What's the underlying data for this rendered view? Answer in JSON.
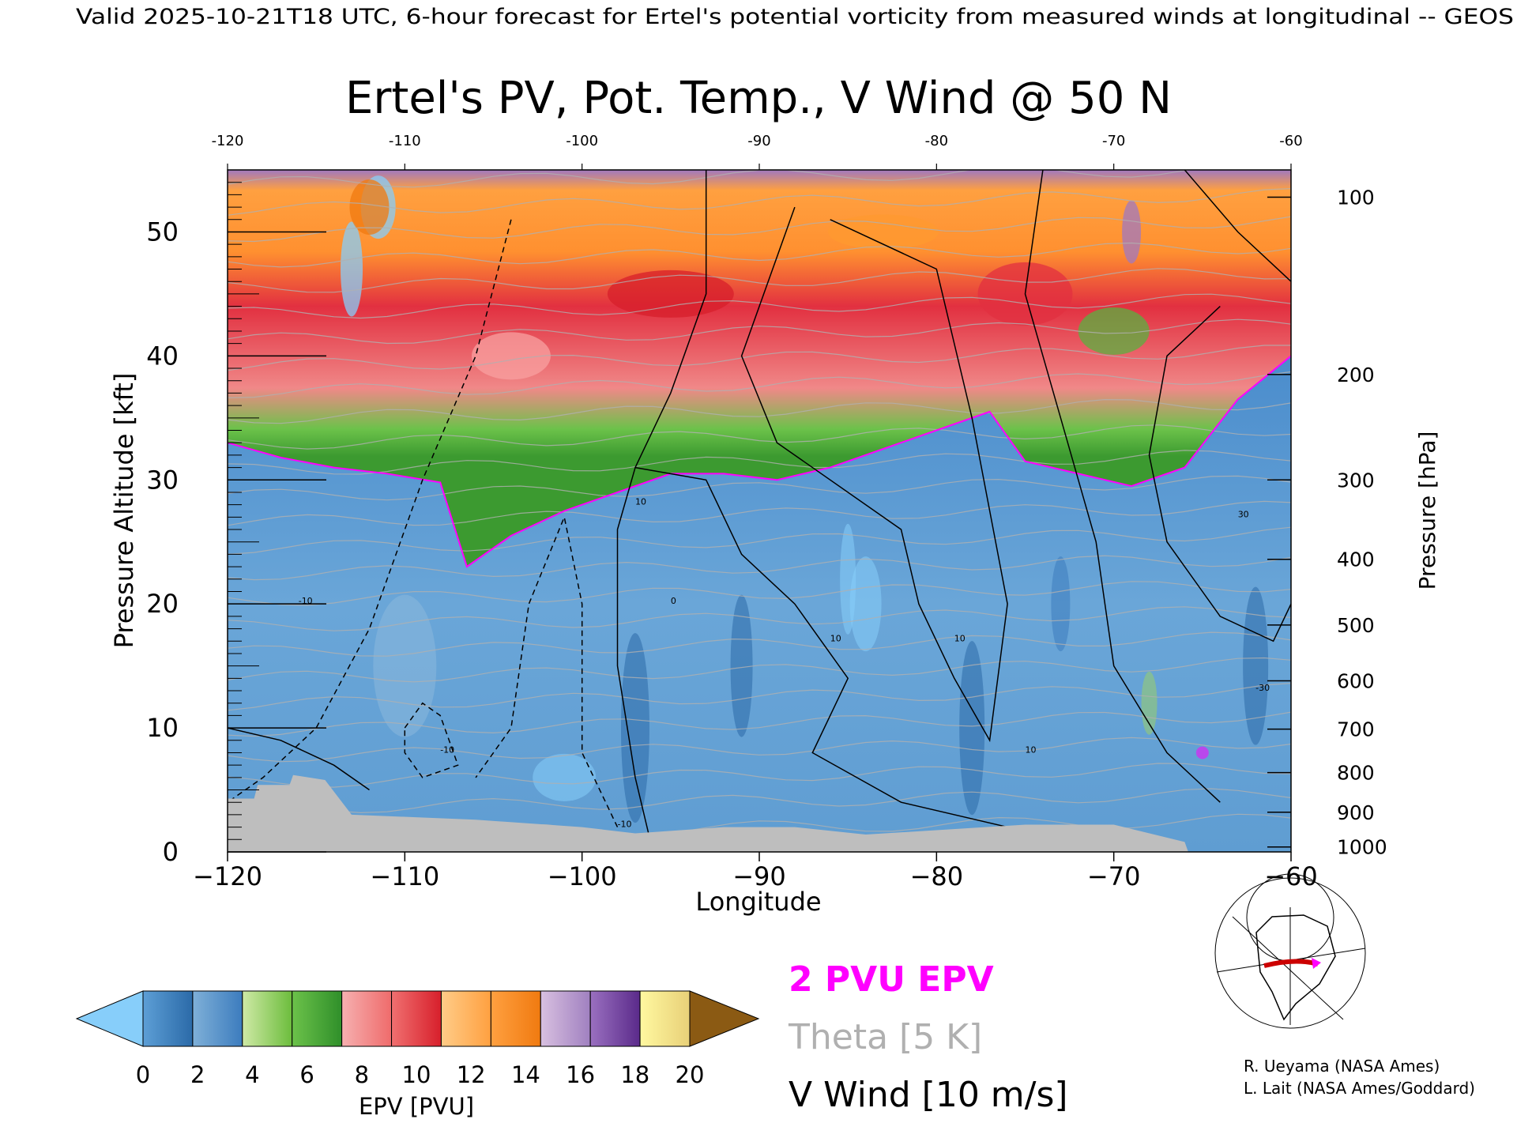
{
  "header": {
    "valid_line": "Valid 2025-10-21T18 UTC, 6-hour forecast for Ertel's potential vorticity from measured winds at longitudinal -- GEOS"
  },
  "chart_data": {
    "type": "heatmap",
    "title": "Ertel's PV, Pot. Temp., V Wind @ 50 N",
    "xlabel": "Longitude",
    "ylabel_left": "Pressure Altitude [kft]",
    "ylabel_right": "Pressure [hPa]",
    "xlim": [
      -120,
      -60
    ],
    "ylim_kft": [
      0,
      55
    ],
    "x_ticks": [
      "-120",
      "-110",
      "-100",
      "-90",
      "-80",
      "-70",
      "-60"
    ],
    "x_ticks_top": [
      "-120",
      "-110",
      "-100",
      "-90",
      "-80",
      "-70",
      "-60"
    ],
    "y_ticks_left": [
      {
        "value": 0,
        "label": "0"
      },
      {
        "value": 10,
        "label": "10"
      },
      {
        "value": 20,
        "label": "20"
      },
      {
        "value": 30,
        "label": "30"
      },
      {
        "value": 40,
        "label": "40"
      },
      {
        "value": 50,
        "label": "50"
      }
    ],
    "y_ticks_right": [
      {
        "kft": 52.8,
        "label": "100"
      },
      {
        "kft": 38.5,
        "label": "200"
      },
      {
        "kft": 30.0,
        "label": "300"
      },
      {
        "kft": 23.6,
        "label": "400"
      },
      {
        "kft": 18.3,
        "label": "500"
      },
      {
        "kft": 13.8,
        "label": "600"
      },
      {
        "kft": 9.9,
        "label": "700"
      },
      {
        "kft": 6.4,
        "label": "800"
      },
      {
        "kft": 3.2,
        "label": "900"
      },
      {
        "kft": 0.4,
        "label": "1000"
      }
    ],
    "epv_2pvu_kft": [
      {
        "lon": -120,
        "kft": 33.0
      },
      {
        "lon": -117,
        "kft": 31.8
      },
      {
        "lon": -114,
        "kft": 31.0
      },
      {
        "lon": -111,
        "kft": 30.5
      },
      {
        "lon": -108,
        "kft": 29.8
      },
      {
        "lon": -106.5,
        "kft": 23.0
      },
      {
        "lon": -104,
        "kft": 25.5
      },
      {
        "lon": -101,
        "kft": 27.5
      },
      {
        "lon": -98,
        "kft": 29.0
      },
      {
        "lon": -95,
        "kft": 30.5
      },
      {
        "lon": -92,
        "kft": 30.5
      },
      {
        "lon": -89,
        "kft": 30.0
      },
      {
        "lon": -86,
        "kft": 31.0
      },
      {
        "lon": -83,
        "kft": 32.5
      },
      {
        "lon": -80,
        "kft": 34.0
      },
      {
        "lon": -77,
        "kft": 35.5
      },
      {
        "lon": -75,
        "kft": 31.5
      },
      {
        "lon": -72,
        "kft": 30.5
      },
      {
        "lon": -69,
        "kft": 29.5
      },
      {
        "lon": -66,
        "kft": 31.0
      },
      {
        "lon": -63,
        "kft": 36.5
      },
      {
        "lon": -60,
        "kft": 40.0
      }
    ],
    "surface_kft": [
      {
        "lon": -120,
        "kft": 4.3
      },
      {
        "lon": -118.5,
        "kft": 4.3
      },
      {
        "lon": -118.3,
        "kft": 5.4
      },
      {
        "lon": -116.5,
        "kft": 5.4
      },
      {
        "lon": -116.3,
        "kft": 6.2
      },
      {
        "lon": -114.5,
        "kft": 5.8
      },
      {
        "lon": -113,
        "kft": 3.0
      },
      {
        "lon": -106,
        "kft": 2.6
      },
      {
        "lon": -100,
        "kft": 2.0
      },
      {
        "lon": -97,
        "kft": 1.5
      },
      {
        "lon": -92,
        "kft": 2.0
      },
      {
        "lon": -88,
        "kft": 2.0
      },
      {
        "lon": -84,
        "kft": 1.4
      },
      {
        "lon": -75,
        "kft": 2.2
      },
      {
        "lon": -70,
        "kft": 2.2
      },
      {
        "lon": -66,
        "kft": 0.8
      },
      {
        "lon": -65.8,
        "kft": 0.0
      }
    ],
    "contour_labels": [
      "10",
      "10",
      "10",
      "10",
      "0",
      "-10",
      "-10",
      "-10",
      "30",
      "-30"
    ]
  },
  "legend": {
    "epv_label": "2 PVU EPV",
    "epv_color": "#ff00ff",
    "theta_label": "Theta [5 K]",
    "theta_color": "#b0b0b0",
    "wind_label": "V Wind [10 m/s]",
    "wind_color": "#000000"
  },
  "colorbar": {
    "label": "EPV [PVU]",
    "ticks": [
      "0",
      "2",
      "4",
      "6",
      "8",
      "10",
      "12",
      "14",
      "16",
      "18",
      "20"
    ],
    "under_color": "#87cefa",
    "over_color": "#8b5a13",
    "bins": [
      {
        "from": "#5d9fd6",
        "to": "#2b6aa8"
      },
      {
        "from": "#7fb0d8",
        "to": "#3c7cbe"
      },
      {
        "from": "#cfe9a6",
        "to": "#6cbd3c"
      },
      {
        "from": "#6cc24a",
        "to": "#2f8f2a"
      },
      {
        "from": "#f6b0b0",
        "to": "#ef6b6b"
      },
      {
        "from": "#f07070",
        "to": "#d71f2b"
      },
      {
        "from": "#ffcc88",
        "to": "#ffa040"
      },
      {
        "from": "#ffa040",
        "to": "#f07a10"
      },
      {
        "from": "#d8c0e0",
        "to": "#a080c0"
      },
      {
        "from": "#9a70c0",
        "to": "#5a2a8a"
      },
      {
        "from": "#fff8a0",
        "to": "#e8d078"
      }
    ]
  },
  "credits": {
    "line1": "R. Ueyama (NASA Ames)",
    "line2": "L. Lait (NASA Ames/Goddard)"
  },
  "inset_map": {
    "icon": "globe-map-icon",
    "track_color": "#cc0000",
    "marker_color": "#ff00ff"
  }
}
